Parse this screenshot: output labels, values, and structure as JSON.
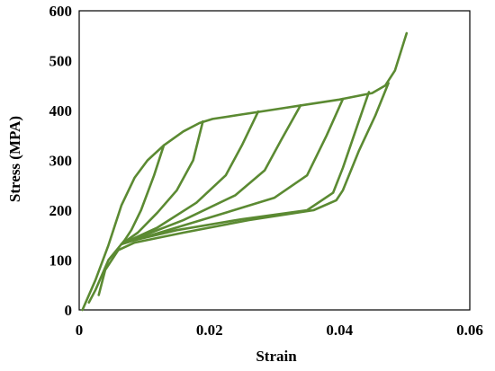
{
  "chart_data": {
    "type": "line",
    "title": "",
    "xlabel": "Strain",
    "ylabel": "Stress (MPA)",
    "xlim": [
      0,
      0.06
    ],
    "ylim": [
      0,
      600
    ],
    "xticks": [
      "0",
      "0.02",
      "0.04",
      "0.06"
    ],
    "yticks": [
      "0",
      "100",
      "200",
      "300",
      "400",
      "500",
      "600"
    ],
    "grid": false,
    "legend": "none",
    "color": "#5b8a32",
    "series": [
      {
        "x": [
          0.0005,
          0.0025,
          0.0045,
          0.0065,
          0.0085,
          0.0105,
          0.013,
          0.016,
          0.0185,
          0.0205,
          0.025,
          0.03,
          0.035,
          0.04,
          0.045,
          0.047,
          0.0485,
          0.0503
        ],
        "y": [
          0,
          60,
          130,
          210,
          265,
          300,
          330,
          358,
          375,
          383,
          392,
          402,
          412,
          422,
          435,
          450,
          480,
          555
        ]
      },
      {
        "x": [
          0.013,
          0.0115,
          0.0095,
          0.008,
          0.007,
          0.0065
        ],
        "y": [
          330,
          270,
          200,
          160,
          140,
          132
        ]
      },
      {
        "x": [
          0.019,
          0.0175,
          0.015,
          0.012,
          0.009,
          0.0065
        ],
        "y": [
          378,
          300,
          240,
          195,
          155,
          132
        ]
      },
      {
        "x": [
          0.0275,
          0.025,
          0.0225,
          0.018,
          0.012,
          0.0065
        ],
        "y": [
          398,
          330,
          270,
          215,
          165,
          132
        ]
      },
      {
        "x": [
          0.034,
          0.031,
          0.0285,
          0.024,
          0.016,
          0.0065
        ],
        "y": [
          410,
          340,
          280,
          230,
          180,
          132
        ]
      },
      {
        "x": [
          0.0405,
          0.038,
          0.035,
          0.03,
          0.02,
          0.0065
        ],
        "y": [
          423,
          350,
          270,
          225,
          185,
          132
        ]
      },
      {
        "x": [
          0.0445,
          0.043,
          0.0405,
          0.039,
          0.035,
          0.025,
          0.015,
          0.0085,
          0.0065,
          0.0045,
          0.0025,
          0.0015
        ],
        "y": [
          437,
          380,
          285,
          235,
          200,
          182,
          160,
          140,
          132,
          100,
          40,
          15
        ]
      },
      {
        "x": [
          0.0475,
          0.0455,
          0.043,
          0.0405,
          0.0395,
          0.036,
          0.026,
          0.016,
          0.0085,
          0.006,
          0.004,
          0.003
        ],
        "y": [
          455,
          390,
          320,
          240,
          220,
          200,
          180,
          155,
          135,
          120,
          80,
          30
        ]
      }
    ]
  }
}
